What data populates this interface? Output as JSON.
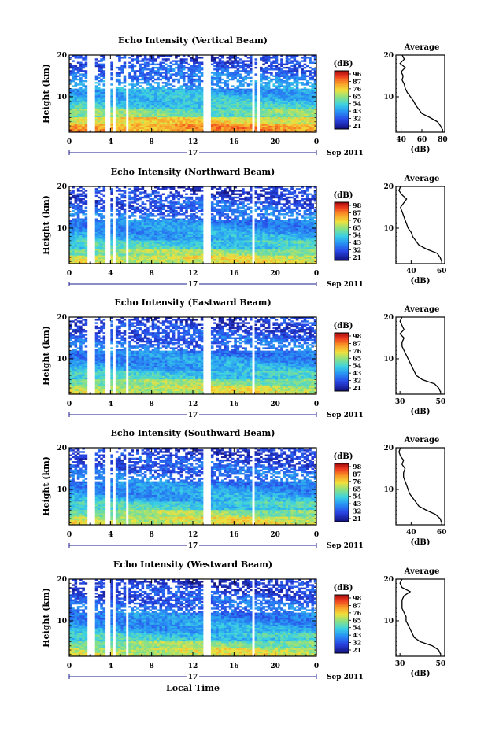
{
  "x_axis_label": "Local Time",
  "date_label": "Sep 2011",
  "day_label": "17",
  "chart_data": [
    {
      "type": "heatmap",
      "title": "Echo Intensity (Vertical Beam)",
      "xlabel": "",
      "ylabel": "Height (km)",
      "xlim": [
        0,
        24
      ],
      "ylim": [
        1.5,
        20
      ],
      "xticks": [
        "0",
        "4",
        "8",
        "12",
        "16",
        "20",
        "0"
      ],
      "yticks": [
        "10",
        "20"
      ],
      "colorbar": {
        "unit": "(dB)",
        "ticks": [
          "96",
          "87",
          "76",
          "65",
          "54",
          "43",
          "32",
          "21"
        ]
      },
      "gaps": [
        [
          1.7,
          2.4
        ],
        [
          3.6,
          3.9
        ],
        [
          4.3,
          4.6
        ],
        [
          5.6,
          5.8
        ],
        [
          12.9,
          13.7
        ],
        [
          17.7,
          18.0
        ],
        [
          18.3,
          18.5
        ]
      ],
      "profile": {
        "title": "Average",
        "xlabel": "(dB)",
        "xticks": [
          "40",
          "60",
          "80"
        ],
        "xlim": [
          35,
          82
        ],
        "yticks": [
          "10",
          "20"
        ],
        "heights": [
          2,
          3,
          4,
          5,
          6,
          7,
          8,
          9,
          10,
          11,
          12,
          13,
          14,
          15,
          16,
          17,
          18,
          19,
          20
        ],
        "values": [
          80,
          78,
          75,
          68,
          60,
          57,
          54,
          52,
          49,
          46,
          44,
          43,
          41,
          42,
          40,
          44,
          39,
          43,
          41
        ]
      }
    },
    {
      "type": "heatmap",
      "title": "Echo Intensity (Northward Beam)",
      "xlabel": "",
      "ylabel": "Height (km)",
      "xlim": [
        0,
        24
      ],
      "ylim": [
        1.5,
        20
      ],
      "xticks": [
        "0",
        "4",
        "8",
        "12",
        "16",
        "20",
        "0"
      ],
      "yticks": [
        "10",
        "20"
      ],
      "colorbar": {
        "unit": "(dB)",
        "ticks": [
          "98",
          "87",
          "76",
          "65",
          "54",
          "43",
          "32",
          "21"
        ]
      },
      "gaps": [
        [
          1.7,
          2.4
        ],
        [
          3.6,
          3.9
        ],
        [
          4.3,
          4.6
        ],
        [
          5.6,
          5.8
        ],
        [
          12.9,
          13.7
        ],
        [
          17.7,
          18.0
        ]
      ],
      "profile": {
        "title": "Average",
        "xlabel": "(dB)",
        "xticks": [
          "40",
          "60"
        ],
        "xlim": [
          30,
          62
        ],
        "yticks": [
          "10",
          "20"
        ],
        "heights": [
          2,
          3,
          4,
          5,
          6,
          7,
          8,
          9,
          10,
          11,
          12,
          13,
          14,
          15,
          16,
          17,
          18,
          19,
          20
        ],
        "values": [
          60,
          59,
          57,
          50,
          45,
          43,
          41,
          40,
          38,
          37,
          36,
          35,
          34,
          33,
          35,
          37,
          34,
          32,
          33
        ]
      }
    },
    {
      "type": "heatmap",
      "title": "Echo Intensity (Eastward Beam)",
      "xlabel": "",
      "ylabel": "Height (km)",
      "xlim": [
        0,
        24
      ],
      "ylim": [
        1.5,
        20
      ],
      "xticks": [
        "0",
        "4",
        "8",
        "12",
        "16",
        "20",
        "0"
      ],
      "yticks": [
        "10",
        "20"
      ],
      "colorbar": {
        "unit": "(dB)",
        "ticks": [
          "98",
          "87",
          "76",
          "65",
          "54",
          "43",
          "32",
          "21"
        ]
      },
      "gaps": [
        [
          1.7,
          2.4
        ],
        [
          3.6,
          3.9
        ],
        [
          4.3,
          4.6
        ],
        [
          5.6,
          5.8
        ],
        [
          12.9,
          13.7
        ],
        [
          17.7,
          18.0
        ]
      ],
      "profile": {
        "title": "Average",
        "xlabel": "(dB)",
        "xticks": [
          "30",
          "50"
        ],
        "xlim": [
          28,
          52
        ],
        "yticks": [
          "10",
          "20"
        ],
        "heights": [
          2,
          3,
          4,
          5,
          6,
          7,
          8,
          9,
          10,
          11,
          12,
          13,
          14,
          15,
          16,
          17,
          18,
          19,
          20
        ],
        "values": [
          50,
          49,
          47,
          41,
          38,
          37,
          36,
          35,
          34,
          33,
          32,
          31,
          31,
          32,
          30,
          32,
          31,
          30,
          31
        ]
      }
    },
    {
      "type": "heatmap",
      "title": "Echo Intensity (Southward Beam)",
      "xlabel": "",
      "ylabel": "Height (km)",
      "xlim": [
        0,
        24
      ],
      "ylim": [
        1.5,
        20
      ],
      "xticks": [
        "0",
        "4",
        "8",
        "12",
        "16",
        "20",
        "0"
      ],
      "yticks": [
        "10",
        "20"
      ],
      "colorbar": {
        "unit": "(dB)",
        "ticks": [
          "98",
          "87",
          "76",
          "65",
          "54",
          "43",
          "32",
          "21"
        ]
      },
      "gaps": [
        [
          1.7,
          2.4
        ],
        [
          3.6,
          3.9
        ],
        [
          4.3,
          4.6
        ],
        [
          5.6,
          5.8
        ],
        [
          12.9,
          13.7
        ],
        [
          17.7,
          18.0
        ]
      ],
      "profile": {
        "title": "Average",
        "xlabel": "(dB)",
        "xticks": [
          "40",
          "60"
        ],
        "xlim": [
          30,
          62
        ],
        "yticks": [
          "10",
          "20"
        ],
        "heights": [
          2,
          3,
          4,
          5,
          6,
          7,
          8,
          9,
          10,
          11,
          12,
          13,
          14,
          15,
          16,
          17,
          18,
          19,
          20
        ],
        "values": [
          60,
          59,
          56,
          50,
          45,
          43,
          41,
          39,
          38,
          37,
          36,
          35,
          35,
          36,
          34,
          35,
          33,
          32,
          33
        ]
      }
    },
    {
      "type": "heatmap",
      "title": "Echo Intensity (Westward Beam)",
      "xlabel": "Local Time",
      "ylabel": "Height (km)",
      "xlim": [
        0,
        24
      ],
      "ylim": [
        1.5,
        20
      ],
      "xticks": [
        "0",
        "4",
        "8",
        "12",
        "16",
        "20",
        "0"
      ],
      "yticks": [
        "10",
        "20"
      ],
      "colorbar": {
        "unit": "(dB)",
        "ticks": [
          "98",
          "87",
          "76",
          "65",
          "54",
          "43",
          "32",
          "21"
        ]
      },
      "gaps": [
        [
          1.7,
          2.4
        ],
        [
          3.6,
          3.9
        ],
        [
          4.3,
          4.6
        ],
        [
          5.6,
          5.8
        ],
        [
          12.9,
          13.7
        ],
        [
          17.7,
          18.0
        ]
      ],
      "profile": {
        "title": "Average",
        "xlabel": "(dB)",
        "xticks": [
          "30",
          "50"
        ],
        "xlim": [
          28,
          52
        ],
        "yticks": [
          "10",
          "20"
        ],
        "heights": [
          2,
          3,
          4,
          5,
          6,
          7,
          8,
          9,
          10,
          11,
          12,
          13,
          14,
          15,
          16,
          17,
          18,
          19,
          20
        ],
        "values": [
          50,
          49,
          46,
          40,
          37,
          36,
          35,
          34,
          33,
          33,
          32,
          31,
          31,
          31,
          32,
          35,
          31,
          30,
          31
        ]
      }
    }
  ]
}
